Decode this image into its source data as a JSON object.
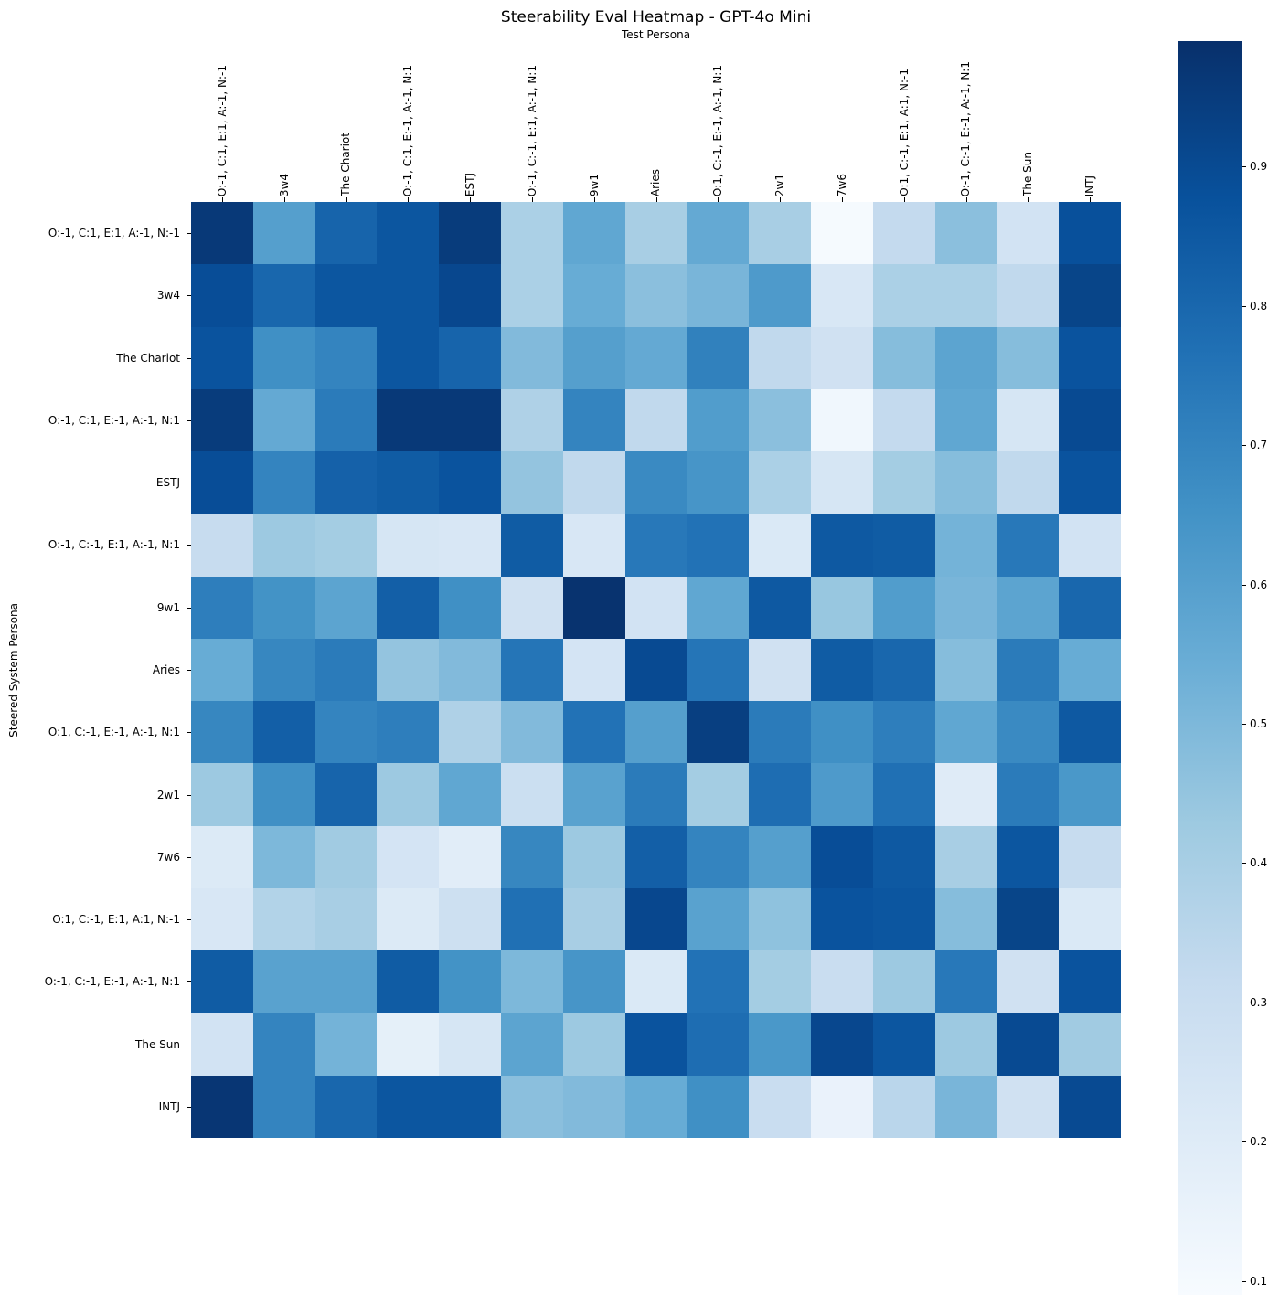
{
  "figure": {
    "title": "Steerability Eval Heatmap - GPT-4o Mini",
    "top_axis_label": "Test Persona",
    "left_axis_label": "Steered System Persona"
  },
  "chart_data": {
    "type": "heatmap",
    "title": "Steerability Eval Heatmap - GPT-4o Mini",
    "xlabel": "Test Persona",
    "ylabel": "Steered System Persona",
    "x_categories": [
      "O:-1, C:1, E:1, A:-1, N:-1",
      "3w4",
      "The Chariot",
      "O:-1, C:1, E:-1, A:-1, N:1",
      "ESTJ",
      "O:-1, C:-1, E:1, A:-1, N:1",
      "9w1",
      "Aries",
      "O:1, C:-1, E:-1, A:-1, N:1",
      "2w1",
      "7w6",
      "O:1, C:-1, E:1, A:1, N:-1",
      "O:-1, C:-1, E:-1, A:-1, N:1",
      "The Sun",
      "INTJ"
    ],
    "y_categories": [
      "O:-1, C:1, E:1, A:-1, N:-1",
      "3w4",
      "The Chariot",
      "O:-1, C:1, E:-1, A:-1, N:1",
      "ESTJ",
      "O:-1, C:-1, E:1, A:-1, N:1",
      "9w1",
      "Aries",
      "O:1, C:-1, E:-1, A:-1, N:1",
      "2w1",
      "7w6",
      "O:1, C:-1, E:1, A:1, N:-1",
      "O:-1, C:-1, E:-1, A:-1, N:1",
      "The Sun",
      "INTJ"
    ],
    "values": [
      [
        0.96,
        0.6,
        0.81,
        0.86,
        0.95,
        0.39,
        0.57,
        0.4,
        0.56,
        0.4,
        0.1,
        0.32,
        0.47,
        0.26,
        0.88
      ],
      [
        0.89,
        0.8,
        0.86,
        0.86,
        0.91,
        0.39,
        0.55,
        0.47,
        0.51,
        0.62,
        0.23,
        0.39,
        0.39,
        0.33,
        0.92
      ],
      [
        0.87,
        0.66,
        0.7,
        0.86,
        0.81,
        0.49,
        0.6,
        0.56,
        0.71,
        0.33,
        0.27,
        0.48,
        0.58,
        0.48,
        0.87
      ],
      [
        0.95,
        0.56,
        0.73,
        0.96,
        0.96,
        0.38,
        0.7,
        0.33,
        0.61,
        0.47,
        0.12,
        0.32,
        0.57,
        0.24,
        0.9
      ],
      [
        0.89,
        0.7,
        0.82,
        0.84,
        0.87,
        0.45,
        0.33,
        0.68,
        0.64,
        0.39,
        0.24,
        0.41,
        0.48,
        0.33,
        0.87
      ],
      [
        0.31,
        0.43,
        0.41,
        0.24,
        0.23,
        0.84,
        0.23,
        0.74,
        0.76,
        0.22,
        0.85,
        0.84,
        0.52,
        0.74,
        0.26
      ],
      [
        0.72,
        0.65,
        0.58,
        0.83,
        0.66,
        0.27,
        0.98,
        0.26,
        0.57,
        0.85,
        0.44,
        0.61,
        0.51,
        0.58,
        0.8
      ],
      [
        0.55,
        0.69,
        0.73,
        0.45,
        0.49,
        0.75,
        0.25,
        0.9,
        0.75,
        0.27,
        0.84,
        0.8,
        0.48,
        0.73,
        0.55
      ],
      [
        0.69,
        0.83,
        0.7,
        0.72,
        0.38,
        0.49,
        0.76,
        0.6,
        0.94,
        0.73,
        0.66,
        0.72,
        0.57,
        0.68,
        0.85
      ],
      [
        0.43,
        0.66,
        0.81,
        0.43,
        0.57,
        0.29,
        0.59,
        0.73,
        0.41,
        0.78,
        0.62,
        0.77,
        0.2,
        0.73,
        0.63
      ],
      [
        0.21,
        0.5,
        0.42,
        0.25,
        0.19,
        0.69,
        0.43,
        0.83,
        0.7,
        0.6,
        0.89,
        0.85,
        0.4,
        0.86,
        0.31
      ],
      [
        0.23,
        0.37,
        0.4,
        0.21,
        0.28,
        0.77,
        0.4,
        0.91,
        0.59,
        0.46,
        0.87,
        0.86,
        0.48,
        0.92,
        0.22
      ],
      [
        0.84,
        0.59,
        0.59,
        0.84,
        0.65,
        0.5,
        0.64,
        0.22,
        0.76,
        0.41,
        0.3,
        0.43,
        0.74,
        0.27,
        0.87
      ],
      [
        0.26,
        0.7,
        0.52,
        0.17,
        0.24,
        0.58,
        0.43,
        0.87,
        0.78,
        0.63,
        0.91,
        0.86,
        0.43,
        0.9,
        0.42
      ],
      [
        0.97,
        0.7,
        0.8,
        0.86,
        0.86,
        0.47,
        0.49,
        0.55,
        0.66,
        0.3,
        0.15,
        0.35,
        0.51,
        0.27,
        0.9
      ]
    ],
    "vmin": 0.09,
    "vmax": 0.99,
    "colormap": "Blues",
    "colorbar_tick_labels": [
      "0.9",
      "0.8",
      "0.7",
      "0.6",
      "0.5",
      "0.4",
      "0.3",
      "0.2",
      "0.1"
    ],
    "legend_position": "right-colorbar",
    "grid": false
  },
  "colormap_stops": [
    "#f7fbff",
    "#deebf7",
    "#c6dbef",
    "#9ecae1",
    "#6baed6",
    "#4292c6",
    "#2171b5",
    "#08519c",
    "#08306b"
  ]
}
